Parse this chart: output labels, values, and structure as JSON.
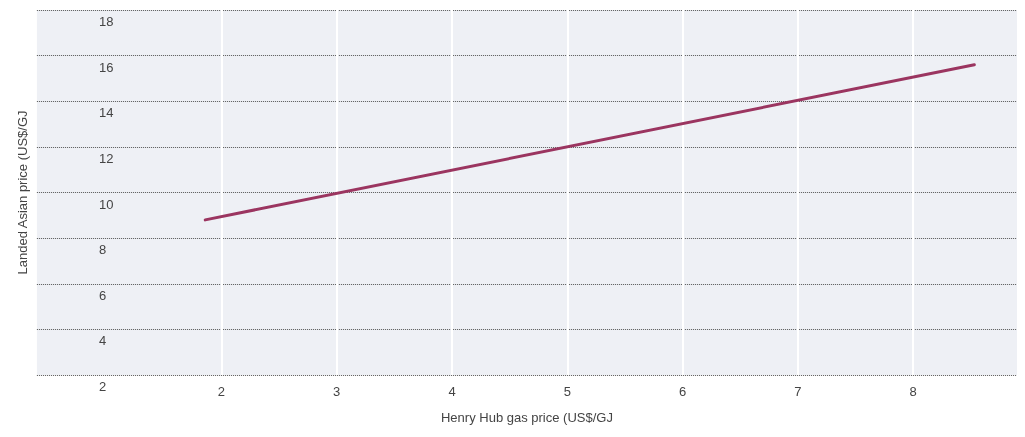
{
  "chart_data": {
    "type": "line",
    "xlabel": "Henry Hub gas price (US$/GJ",
    "ylabel": "Landed Asian price (US$/GJ",
    "series": [
      {
        "color": "#9b3560",
        "x": [
          1.86,
          8.53
        ],
        "values": [
          8.8,
          15.6
        ]
      }
    ],
    "xlim": [
      0.4,
      8.9
    ],
    "xticks": [
      2,
      3,
      4,
      5,
      6,
      7,
      8
    ],
    "ylim": [
      2,
      18
    ],
    "yticks": [
      2,
      4,
      6,
      8,
      10,
      12,
      14,
      16,
      18
    ],
    "grid": true,
    "marker": "none",
    "line_style": "solid"
  }
}
